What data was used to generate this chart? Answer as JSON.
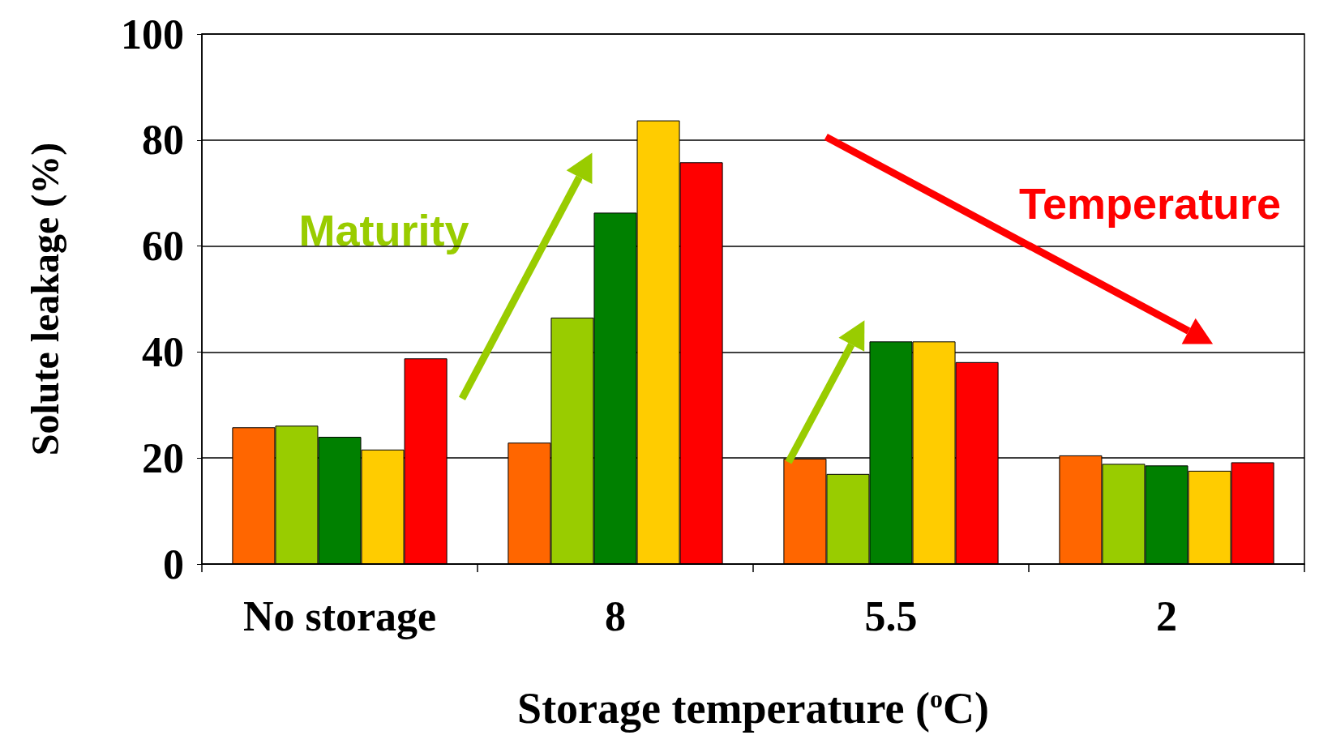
{
  "chart_data": {
    "type": "bar",
    "xlabel": "Storage temperature ($^{o}$C)",
    "ylabel": "Solute leakage (%)",
    "categories": [
      "No storage",
      "8",
      "5.5",
      "2"
    ],
    "series": [
      {
        "color": "#ff6600",
        "values": [
          25.8,
          22.9,
          19.9,
          20.5
        ]
      },
      {
        "color": "#99cc00",
        "values": [
          26.1,
          46.5,
          17.0,
          18.9
        ]
      },
      {
        "color": "#008000",
        "values": [
          24.0,
          66.3,
          42.0,
          18.6
        ]
      },
      {
        "color": "#ffcc00",
        "values": [
          21.6,
          83.7,
          42.0,
          17.6
        ]
      },
      {
        "color": "#ff0000",
        "values": [
          38.8,
          75.8,
          38.1,
          19.2
        ]
      }
    ],
    "ylim": [
      0,
      100
    ],
    "yticks": [
      0,
      20,
      40,
      60,
      80,
      100
    ],
    "grid": "y",
    "annotations": [
      "Maturity",
      "Temperature"
    ]
  }
}
